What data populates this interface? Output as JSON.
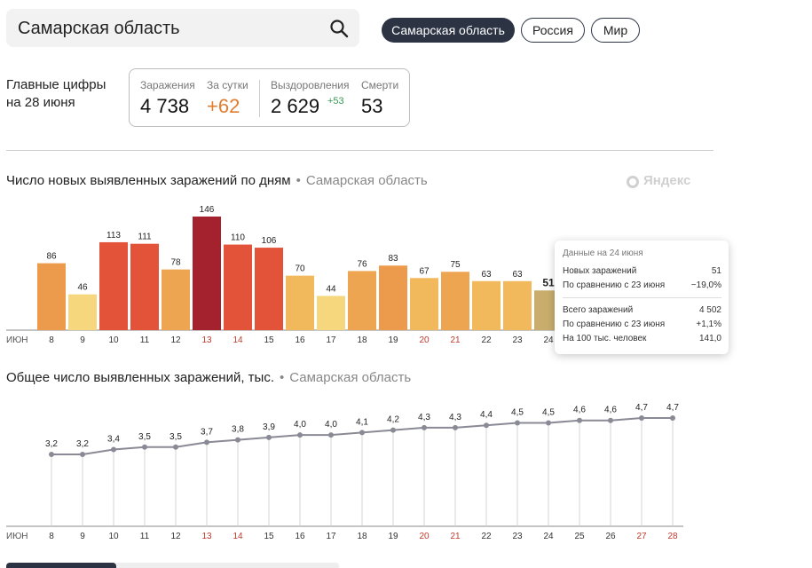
{
  "search": {
    "value": "Самарская область"
  },
  "region_tabs": [
    {
      "label": "Самарская область",
      "active": true
    },
    {
      "label": "Россия",
      "active": false
    },
    {
      "label": "Мир",
      "active": false
    }
  ],
  "main_figures": {
    "title_line1": "Главные цифры",
    "title_line2": "на 28 июня",
    "infected_label": "Заражения",
    "infected_value": "4 738",
    "daily_label": "За сутки",
    "daily_value": "+62",
    "recovered_label": "Выздоровления",
    "recovered_value": "2 629",
    "recovered_delta": "+53",
    "deaths_label": "Смерти",
    "deaths_value": "53"
  },
  "section1": {
    "title": "Число новых выявленных заражений по дням",
    "region": "Самарская область",
    "brand": "Яндекс"
  },
  "section2": {
    "title": "Общее число выявленных заражений, тыс.",
    "region": "Самарская область"
  },
  "tooltip": {
    "title": "Данные на 24 июня",
    "new_label": "Новых заражений",
    "new_value": "51",
    "cmp1_label": "По сравнению с 23 июня",
    "cmp1_value": "−19,0%",
    "total_label": "Всего заражений",
    "total_value": "4 502",
    "cmp2_label": "По сравнению с 23 июня",
    "cmp2_value": "+1,1%",
    "per100k_label": "На 100 тыс. человек",
    "per100k_value": "141,0"
  },
  "colors": {
    "tab_active": "#2c3444",
    "weekend_label": "#c0392b",
    "line": "#8a8a96"
  },
  "chart_data": [
    {
      "type": "bar",
      "title": "Число новых выявленных заражений по дням",
      "xlabel": "ИЮН",
      "categories": [
        "8",
        "9",
        "10",
        "11",
        "12",
        "13",
        "14",
        "15",
        "16",
        "17",
        "18",
        "19",
        "20",
        "21",
        "22",
        "23",
        "24"
      ],
      "weekend_categories": [
        "13",
        "14",
        "20",
        "21"
      ],
      "highlighted_category": "24",
      "values": [
        86,
        46,
        113,
        111,
        78,
        146,
        110,
        106,
        70,
        44,
        76,
        83,
        67,
        75,
        63,
        63,
        51
      ],
      "bar_colors": [
        "#ec9a4c",
        "#f7d77e",
        "#e2533a",
        "#e2533a",
        "#eea552",
        "#a3222e",
        "#e2533a",
        "#e2533a",
        "#f2b95c",
        "#f7d77e",
        "#eea552",
        "#ec9a4c",
        "#f2b95c",
        "#eea552",
        "#f2b95c",
        "#f2b95c",
        "#c9ad6c"
      ],
      "ylim": [
        0,
        146
      ]
    },
    {
      "type": "line",
      "title": "Общее число выявленных заражений, тыс.",
      "xlabel": "ИЮН",
      "categories": [
        "8",
        "9",
        "10",
        "11",
        "12",
        "13",
        "14",
        "15",
        "16",
        "17",
        "18",
        "19",
        "20",
        "21",
        "22",
        "23",
        "24",
        "25",
        "26",
        "27",
        "28"
      ],
      "weekend_categories": [
        "13",
        "14",
        "20",
        "21",
        "27",
        "28"
      ],
      "labels": [
        "3,2",
        "3,2",
        "3,4",
        "3,5",
        "3,5",
        "3,7",
        "3,8",
        "3,9",
        "4,0",
        "4,0",
        "4,1",
        "4,2",
        "4,3",
        "4,3",
        "4,4",
        "4,5",
        "4,5",
        "4,6",
        "4,6",
        "4,7",
        "4,7"
      ],
      "values": [
        3.2,
        3.2,
        3.4,
        3.5,
        3.5,
        3.7,
        3.8,
        3.9,
        4.0,
        4.0,
        4.1,
        4.2,
        4.3,
        4.3,
        4.4,
        4.5,
        4.5,
        4.6,
        4.6,
        4.7,
        4.7
      ]
    }
  ]
}
